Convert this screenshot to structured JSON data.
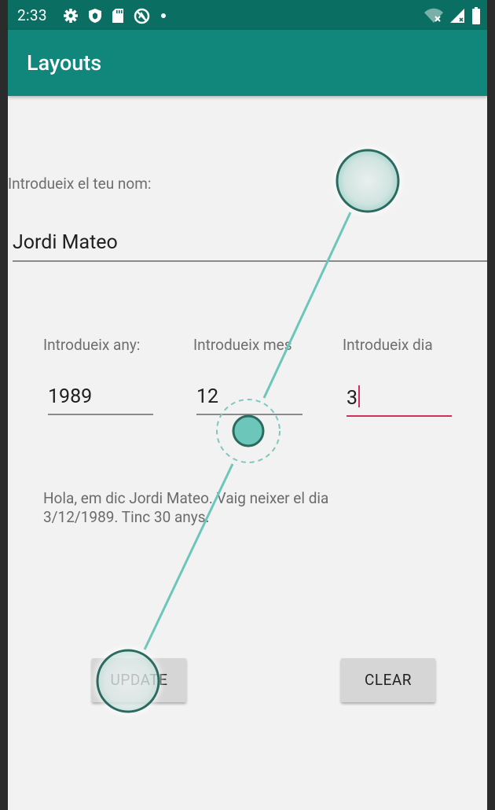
{
  "status_bar": {
    "time": "2:33"
  },
  "app_bar": {
    "title": "Layouts"
  },
  "form": {
    "name_label": "Introdueix el teu nom:",
    "name_value": "Jordi Mateo",
    "year_label": "Introdueix any:",
    "year_value": "1989",
    "month_label": "Introdueix mes",
    "month_value": "12",
    "day_label": "Introdueix dia",
    "day_value": "3"
  },
  "message": "Hola, em dic Jordi Mateo. Vaig neixer el dia 3/12/1989. Tinc 30 anys.",
  "buttons": {
    "update": "UPDATE",
    "clear": "CLEAR"
  },
  "colors": {
    "status_bar": "#0b6e62",
    "app_bar": "#10877a",
    "focus_accent": "#d0305f",
    "gesture_teal": "#6cc7ba"
  }
}
